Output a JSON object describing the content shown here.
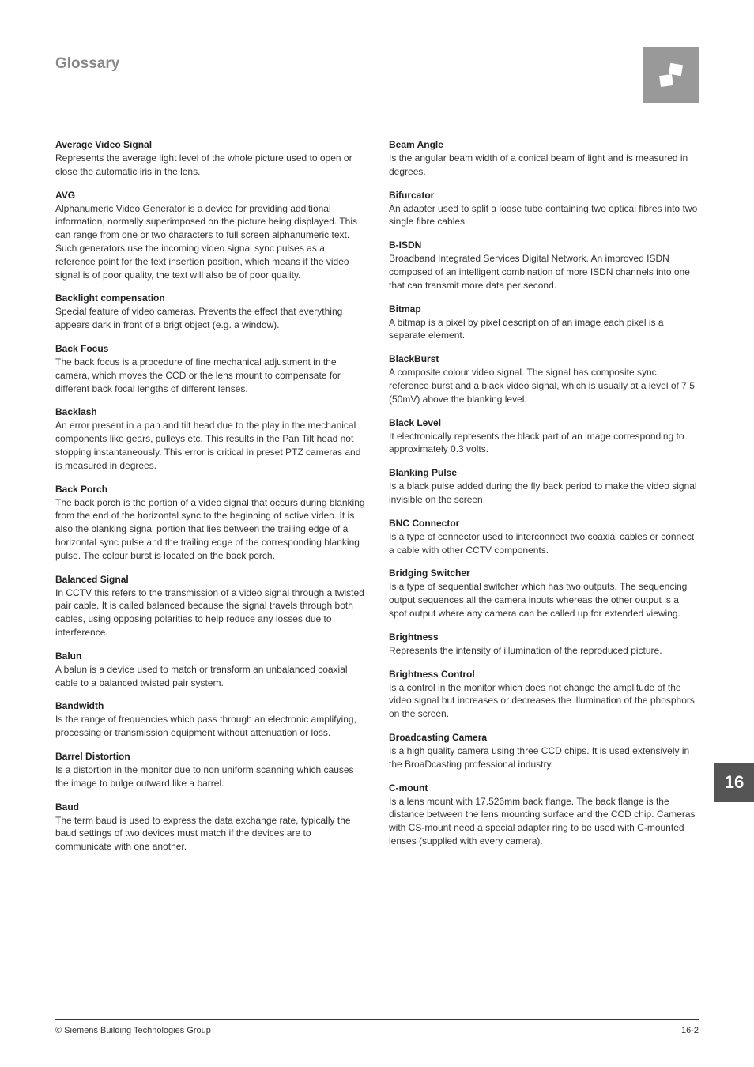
{
  "header": {
    "title": "Glossary"
  },
  "tab": {
    "number": "16"
  },
  "footer": {
    "left": "© Siemens Building Technologies Group",
    "right": "16-2"
  },
  "left": [
    {
      "term": "Average Video Signal",
      "def": "Represents the average light level of the whole picture used to open or close the automatic iris in the lens."
    },
    {
      "term": "AVG",
      "def": "Alphanumeric Video Generator is a device for providing additional information, normally superimposed on the picture being displayed. This can range from one or two characters to full screen alphanumeric text. Such generators use the incoming video signal sync pulses as a reference point for the text insertion position, which means if the video signal is of poor quality, the text will also be of poor quality."
    },
    {
      "term": "Backlight compensation",
      "def": "Special feature of video cameras. Prevents the effect that everything appears dark in front of a brigt object (e.g. a window)."
    },
    {
      "term": "Back Focus",
      "def": "The back focus is a procedure of fine mechanical adjustment in the camera, which moves the CCD or the lens mount to compensate for different back focal lengths of different lenses."
    },
    {
      "term": "Backlash",
      "def": "An error present in a pan and tilt head due to the play in the mechanical components like gears, pulleys etc. This results in the Pan Tilt head not stopping instantaneously. This error is critical in preset PTZ cameras and is measured in degrees."
    },
    {
      "term": "Back Porch",
      "def": "The back porch is the portion of a video signal that occurs during blanking from the end of the horizontal sync to the beginning of active video. It is also the blanking signal portion that lies between the trailing edge of a horizontal sync pulse and the trailing edge of the corresponding blanking pulse. The colour burst is located on the back porch."
    },
    {
      "term": "Balanced Signal",
      "def": "In CCTV this refers to the transmission of a video signal through a twisted pair cable. It is called balanced because the signal travels through both cables, using opposing polarities to help reduce any losses due to interference."
    },
    {
      "term": "Balun",
      "def": "A balun is a device used to match or transform an unbalanced coaxial cable to a balanced twisted pair system."
    },
    {
      "term": "Bandwidth",
      "def": "Is the range of frequencies which pass through an electronic amplifying, processing or transmission equipment without attenuation or loss."
    },
    {
      "term": "Barrel Distortion",
      "def": "Is a distortion in the monitor due to non uniform scanning which causes the image to bulge outward like a barrel."
    },
    {
      "term": "Baud",
      "def": "The term baud is used to express the data exchange rate, typically the baud settings of two devices must match if the devices are to communicate with one another."
    }
  ],
  "right": [
    {
      "term": "Beam Angle",
      "def": "Is the angular beam width of a conical beam of light and is measured in degrees."
    },
    {
      "term": "Bifurcator",
      "def": "An adapter used to split a loose tube containing two optical fibres into two single fibre cables."
    },
    {
      "term": "B-ISDN",
      "def": "Broadband Integrated Services Digital Network. An improved ISDN composed of an intelligent combination of more ISDN channels into one that can transmit more data per second."
    },
    {
      "term": "Bitmap",
      "def": "A bitmap is a pixel by pixel description of an image each pixel is a separate element."
    },
    {
      "term": "BlackBurst",
      "def": "A composite colour video signal. The signal has composite sync, reference burst and a black video signal, which is usually at a level of 7.5 (50mV) above the blanking level."
    },
    {
      "term": "Black Level",
      "def": "It electronically represents the black part of an image corresponding to approximately 0.3 volts."
    },
    {
      "term": "Blanking Pulse",
      "def": "Is a black pulse added during the fly back period to make the video signal invisible on the screen."
    },
    {
      "term": "BNC Connector",
      "def": "Is a type of connector used to interconnect two coaxial cables or connect a cable with other CCTV components."
    },
    {
      "term": "Bridging Switcher",
      "def": "Is a type of sequential switcher which has two outputs. The sequencing output sequences all the camera inputs whereas the other output is a spot output where any camera can be called up for extended viewing."
    },
    {
      "term": "Brightness",
      "def": "Represents the intensity of illumination of the reproduced picture."
    },
    {
      "term": "Brightness Control",
      "def": "Is a control in the monitor which does not change the amplitude of the video signal but increases or decreases the illumination of the phosphors on the screen."
    },
    {
      "term": "Broadcasting Camera",
      "def": "Is a high quality camera using three CCD chips. It is used extensively in the BroaDcasting professional industry."
    },
    {
      "term": "C-mount",
      "def": "Is a lens mount with 17.526mm back flange. The back flange is the distance between the lens mounting surface and the CCD chip. Cameras with CS-mount need a special adapter ring to be used with C-mounted lenses (supplied with every camera)."
    }
  ]
}
